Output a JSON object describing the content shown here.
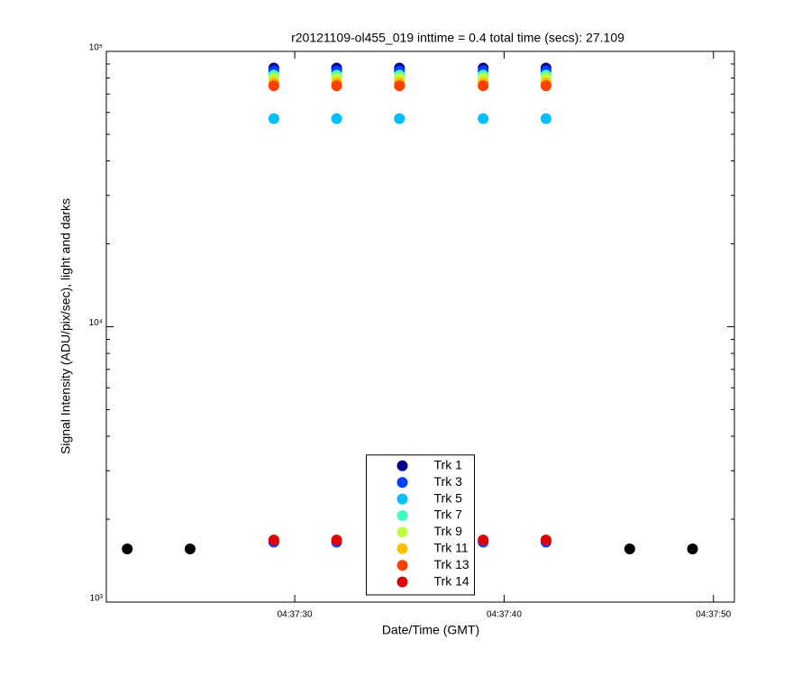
{
  "chart_data": {
    "type": "scatter",
    "title": "r20121109-ol455_019 inttime = 0.4 total time (secs): 27.109",
    "x_label": "Date/Time (GMT)",
    "y_label": "Signal Intensity (ADU/pix/sec), light and darks",
    "x": [
      "04:37:22",
      "04:37:25",
      "04:37:29",
      "04:37:32",
      "04:37:35",
      "04:37:39",
      "04:37:42",
      "04:37:46",
      "04:37:49"
    ],
    "xlim": [
      "04:37:21",
      "04:37:51"
    ],
    "xticks": [
      "04:37:30",
      "04:37:40",
      "04:37:50"
    ],
    "ylim": [
      1000,
      100000
    ],
    "yticks": [
      {
        "value": 1000,
        "label": "10³"
      },
      {
        "value": 10000,
        "label": "10⁴"
      },
      {
        "value": 100000,
        "label": "10⁵"
      }
    ],
    "log_y": true,
    "legend": "lower center",
    "series": [
      {
        "color": "#000000",
        "values": [
          1560,
          1560,
          null,
          null,
          null,
          null,
          null,
          1560,
          1560
        ]
      },
      {
        "color": "#1e3cf0",
        "values": [
          null,
          null,
          1650,
          1650,
          1650,
          1650,
          1650,
          null,
          null
        ]
      },
      {
        "name": "Trk 1",
        "color": "#00008f",
        "values": [
          null,
          null,
          87000,
          87000,
          87000,
          87000,
          87000,
          null,
          null
        ]
      },
      {
        "name": "Trk 3",
        "color": "#0040ff",
        "values": [
          null,
          null,
          85000,
          85000,
          85000,
          85000,
          85000,
          null,
          null
        ]
      },
      {
        "name": "Trk 5",
        "color": "#00bfff",
        "values": [
          null,
          null,
          57000,
          57000,
          57000,
          57000,
          57000,
          null,
          null
        ]
      },
      {
        "name": "Trk 7",
        "color": "#40ffbf",
        "values": [
          null,
          null,
          82000,
          82000,
          82000,
          82000,
          82000,
          null,
          null
        ]
      },
      {
        "name": "Trk 9",
        "color": "#bfff40",
        "values": [
          null,
          null,
          80000,
          80000,
          80000,
          80000,
          80000,
          null,
          null
        ]
      },
      {
        "name": "Trk 11",
        "color": "#ffbf00",
        "values": [
          null,
          null,
          77000,
          77000,
          77000,
          77000,
          77000,
          null,
          null
        ]
      },
      {
        "name": "Trk 13",
        "color": "#ff4000",
        "values": [
          null,
          null,
          75000,
          75000,
          75000,
          75000,
          75000,
          null,
          null
        ]
      },
      {
        "name": "Trk 14",
        "color": "#e00000",
        "values": [
          null,
          null,
          1680,
          1680,
          1680,
          1680,
          1680,
          null,
          null
        ]
      }
    ]
  }
}
